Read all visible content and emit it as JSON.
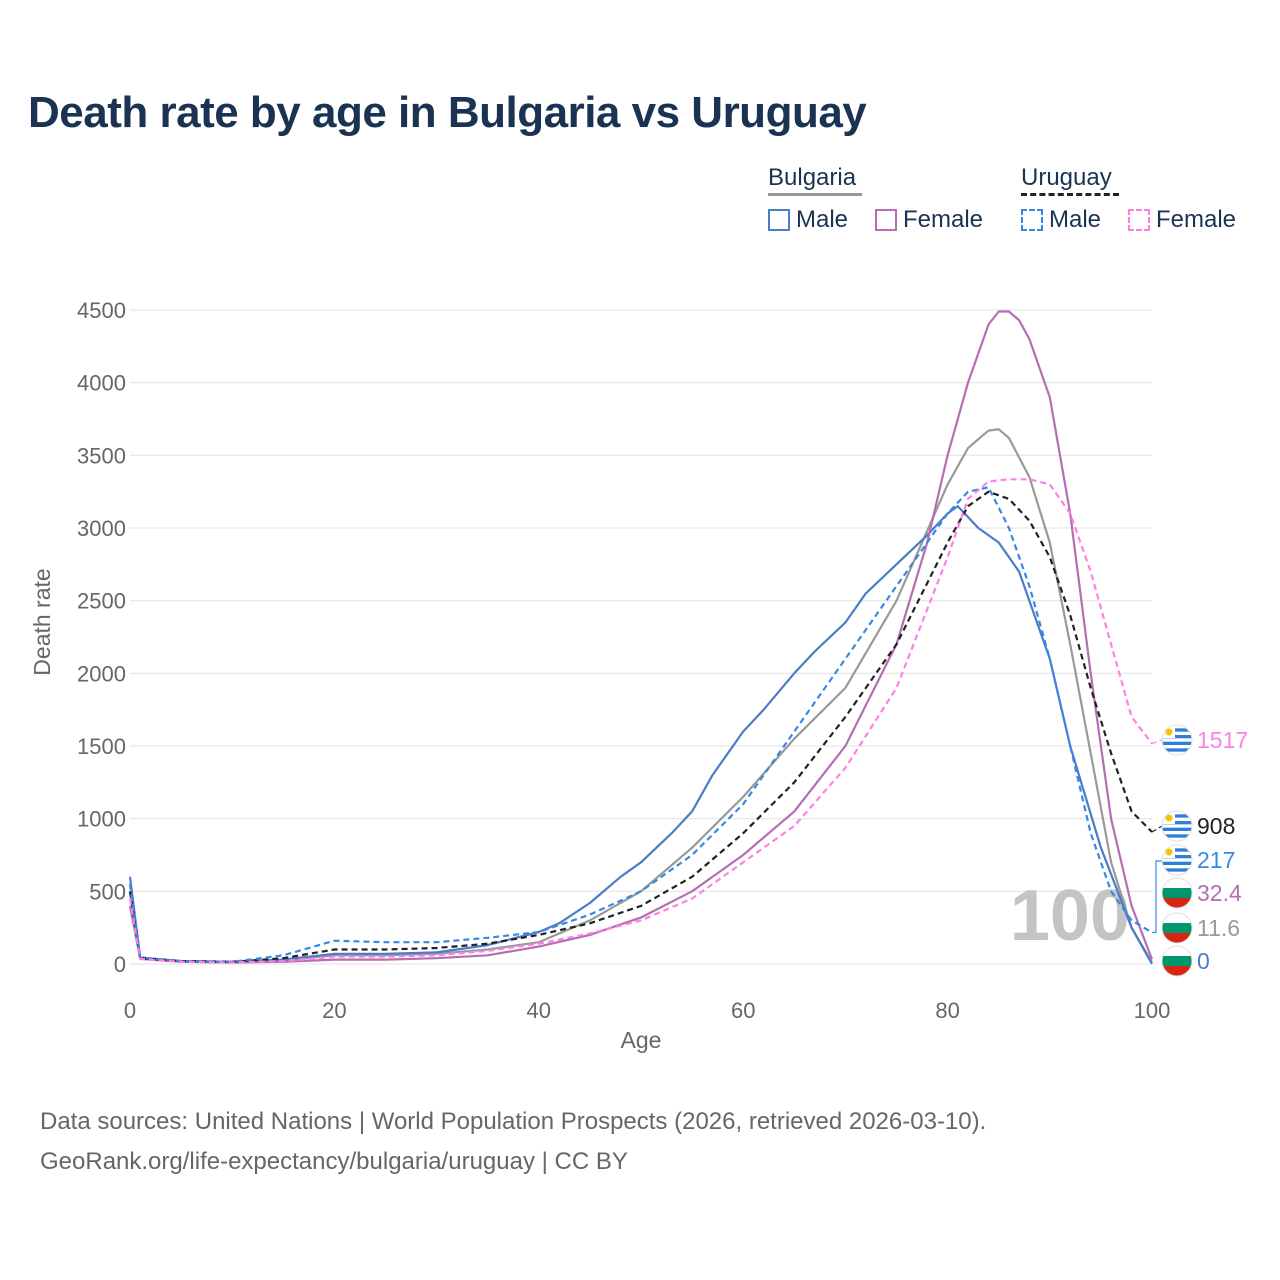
{
  "title": "Death rate by age in Bulgaria vs Uruguay",
  "legend": {
    "country1": "Bulgaria",
    "country2": "Uruguay",
    "male": "Male",
    "female": "Female"
  },
  "colors": {
    "bg_total": "#999999",
    "bg_male": "#4a7cc7",
    "bg_female": "#b26fb2",
    "uy_total": "#222222",
    "uy_male": "#3a88e6",
    "uy_female": "#ff7fe5",
    "title": "#1b3353",
    "grid": "#e6e6e6"
  },
  "source_line1": "Data sources: United Nations | World Population Prospects (2026, retrieved 2026-03-10).",
  "source_line2": "GeoRank.org/life-expectancy/bulgaria/uruguay | CC BY",
  "chart_data": {
    "type": "line",
    "title": "Death rate by age in Bulgaria vs Uruguay",
    "xlabel": "Age",
    "ylabel": "Death rate",
    "xlim": [
      0,
      100
    ],
    "ylim": [
      0,
      4500
    ],
    "x_ticks": [
      0,
      20,
      40,
      60,
      80,
      100
    ],
    "y_ticks": [
      0,
      500,
      1000,
      1500,
      2000,
      2500,
      3000,
      3500,
      4000,
      4500
    ],
    "annotation": "100",
    "series": [
      {
        "name": "Bulgaria Total",
        "key": "bg_total",
        "dashed": false,
        "x": [
          0,
          1,
          5,
          10,
          15,
          20,
          25,
          30,
          35,
          40,
          45,
          50,
          55,
          60,
          65,
          70,
          75,
          80,
          82,
          84,
          85,
          86,
          88,
          90,
          92,
          94,
          96,
          98,
          100
        ],
        "y": [
          500,
          40,
          20,
          15,
          25,
          60,
          60,
          70,
          100,
          150,
          300,
          500,
          800,
          1150,
          1550,
          1900,
          2500,
          3300,
          3550,
          3670,
          3680,
          3620,
          3350,
          2900,
          2200,
          1450,
          700,
          250,
          11.6
        ],
        "end_label": "11.6"
      },
      {
        "name": "Bulgaria Male",
        "key": "bg_male",
        "dashed": false,
        "x": [
          0,
          1,
          5,
          10,
          15,
          20,
          25,
          30,
          35,
          40,
          42,
          45,
          48,
          50,
          53,
          55,
          57,
          60,
          62,
          65,
          67,
          70,
          72,
          75,
          78,
          80,
          81,
          83,
          85,
          87,
          90,
          92,
          95,
          98,
          100
        ],
        "y": [
          600,
          45,
          20,
          15,
          30,
          70,
          70,
          80,
          130,
          220,
          280,
          420,
          600,
          700,
          900,
          1050,
          1300,
          1600,
          1750,
          2000,
          2150,
          2350,
          2550,
          2750,
          2950,
          3100,
          3150,
          3000,
          2900,
          2700,
          2100,
          1500,
          800,
          250,
          0
        ],
        "end_label": "0"
      },
      {
        "name": "Bulgaria Female",
        "key": "bg_female",
        "dashed": false,
        "x": [
          0,
          1,
          5,
          10,
          15,
          20,
          25,
          30,
          35,
          40,
          45,
          50,
          55,
          60,
          65,
          70,
          75,
          78,
          80,
          82,
          84,
          85,
          86,
          87,
          88,
          90,
          92,
          94,
          96,
          98,
          100
        ],
        "y": [
          400,
          35,
          15,
          10,
          15,
          30,
          30,
          40,
          60,
          120,
          200,
          320,
          500,
          750,
          1050,
          1500,
          2200,
          2900,
          3500,
          4000,
          4400,
          4490,
          4490,
          4430,
          4300,
          3900,
          3100,
          2000,
          1000,
          400,
          32.4
        ],
        "end_label": "32.4"
      },
      {
        "name": "Uruguay Total",
        "key": "uy_total",
        "dashed": true,
        "x": [
          0,
          1,
          5,
          10,
          15,
          20,
          25,
          30,
          35,
          40,
          45,
          50,
          55,
          60,
          65,
          70,
          75,
          80,
          82,
          84,
          86,
          88,
          90,
          92,
          94,
          96,
          98,
          100
        ],
        "y": [
          500,
          40,
          20,
          15,
          40,
          100,
          100,
          110,
          140,
          200,
          280,
          400,
          600,
          900,
          1250,
          1700,
          2200,
          2900,
          3150,
          3250,
          3200,
          3050,
          2800,
          2400,
          1900,
          1450,
          1050,
          908
        ],
        "end_label": "908"
      },
      {
        "name": "Uruguay Male",
        "key": "uy_male",
        "dashed": true,
        "x": [
          0,
          1,
          5,
          10,
          15,
          20,
          25,
          30,
          35,
          40,
          45,
          50,
          55,
          60,
          65,
          70,
          75,
          80,
          82,
          84,
          86,
          88,
          90,
          92,
          94,
          96,
          98,
          100
        ],
        "y": [
          550,
          45,
          20,
          15,
          60,
          160,
          150,
          150,
          180,
          220,
          340,
          500,
          750,
          1100,
          1600,
          2100,
          2600,
          3100,
          3250,
          3280,
          3000,
          2600,
          2100,
          1500,
          900,
          500,
          300,
          217
        ],
        "end_label": "217"
      },
      {
        "name": "Uruguay Female",
        "key": "uy_female",
        "dashed": true,
        "x": [
          0,
          1,
          5,
          10,
          15,
          20,
          25,
          30,
          35,
          40,
          45,
          50,
          55,
          60,
          65,
          70,
          75,
          80,
          82,
          84,
          86,
          88,
          90,
          92,
          94,
          96,
          98,
          100
        ],
        "y": [
          450,
          35,
          15,
          10,
          20,
          50,
          50,
          60,
          90,
          140,
          210,
          300,
          450,
          700,
          950,
          1350,
          1900,
          2800,
          3200,
          3320,
          3335,
          3335,
          3300,
          3100,
          2700,
          2200,
          1700,
          1517
        ],
        "end_label": "1517"
      }
    ]
  }
}
